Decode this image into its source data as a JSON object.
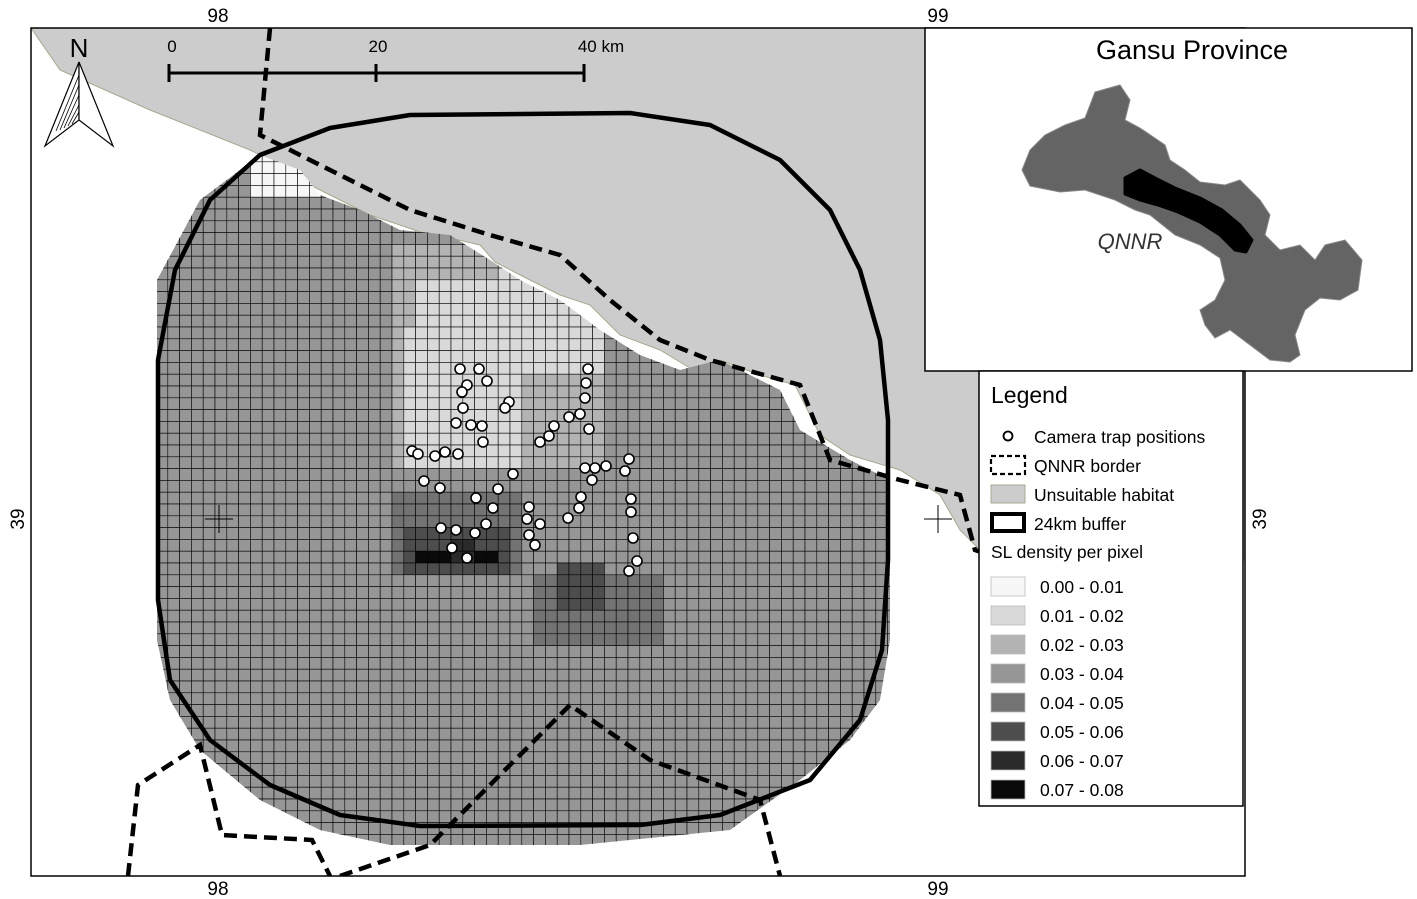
{
  "map": {
    "coords": {
      "top_left": "98",
      "top_right": "99",
      "bottom_left": "98",
      "bottom_right": "99",
      "left": "39",
      "right": "39"
    },
    "north_label": "N",
    "scale_bar": {
      "labels": [
        "0",
        "20",
        "40 km"
      ]
    }
  },
  "inset": {
    "title": "Gansu Province",
    "reserve_label": "QNNR"
  },
  "legend": {
    "title": "Legend",
    "items": [
      {
        "label": "Camera trap positions",
        "icon": "white-circle"
      },
      {
        "label": "QNNR border",
        "icon": "dashed-box"
      },
      {
        "label": "Unsuitable habitat",
        "icon": "grey-box"
      },
      {
        "label": "24km buffer",
        "icon": "thick-outline-box"
      }
    ],
    "density_title": "SL density per pixel",
    "density_classes": [
      {
        "label": "0.00 - 0.01",
        "color": "#f7f7f7"
      },
      {
        "label": "0.01 - 0.02",
        "color": "#d9d9d9"
      },
      {
        "label": "0.02 - 0.03",
        "color": "#b3b3b3"
      },
      {
        "label": "0.03 - 0.04",
        "color": "#969696"
      },
      {
        "label": "0.04 - 0.05",
        "color": "#737373"
      },
      {
        "label": "0.05 - 0.06",
        "color": "#4d4d4d"
      },
      {
        "label": "0.06 - 0.07",
        "color": "#2a2a2a"
      },
      {
        "label": "0.07 - 0.08",
        "color": "#0a0a0a"
      }
    ]
  },
  "colors": {
    "unsuitable_habitat": "#cccccc",
    "inset_province": "#646464",
    "camera_fill": "#ffffff"
  }
}
